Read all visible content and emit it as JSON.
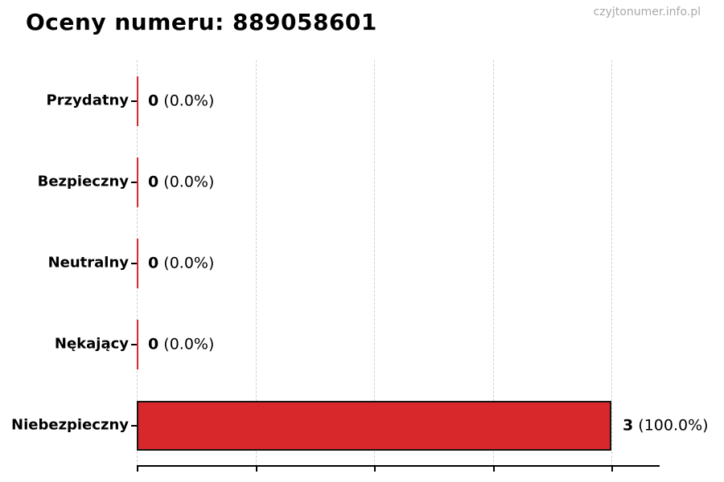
{
  "page": {
    "title": "Oceny numeru: 889058601",
    "watermark": "czyjtonumer.info.pl"
  },
  "chart_data": {
    "type": "bar",
    "orientation": "horizontal",
    "title": "Oceny numeru: 889058601",
    "categories": [
      "Przydatny",
      "Bezpieczny",
      "Neutralny",
      "Nękający",
      "Niebezpieczny"
    ],
    "values": [
      0,
      0,
      0,
      0,
      3
    ],
    "percentages": [
      0.0,
      0.0,
      0.0,
      0.0,
      100.0
    ],
    "xlim": [
      0,
      3
    ],
    "x_tick_count": 5,
    "grid": "vertical dashed gridlines",
    "legend": "none",
    "bar_fill_color": "#d9282c",
    "bar_edge_color": "#141414",
    "grid_color": "#cfcfcf",
    "watermark_color": "#a9a9a9",
    "rows": [
      {
        "label": "Przydatny",
        "count": "0",
        "pct": "(0.0%)"
      },
      {
        "label": "Bezpieczny",
        "count": "0",
        "pct": "(0.0%)"
      },
      {
        "label": "Neutralny",
        "count": "0",
        "pct": "(0.0%)"
      },
      {
        "label": "Nękający",
        "count": "0",
        "pct": "(0.0%)"
      },
      {
        "label": "Niebezpieczny",
        "count": "3",
        "pct": "(100.0%)"
      }
    ]
  }
}
